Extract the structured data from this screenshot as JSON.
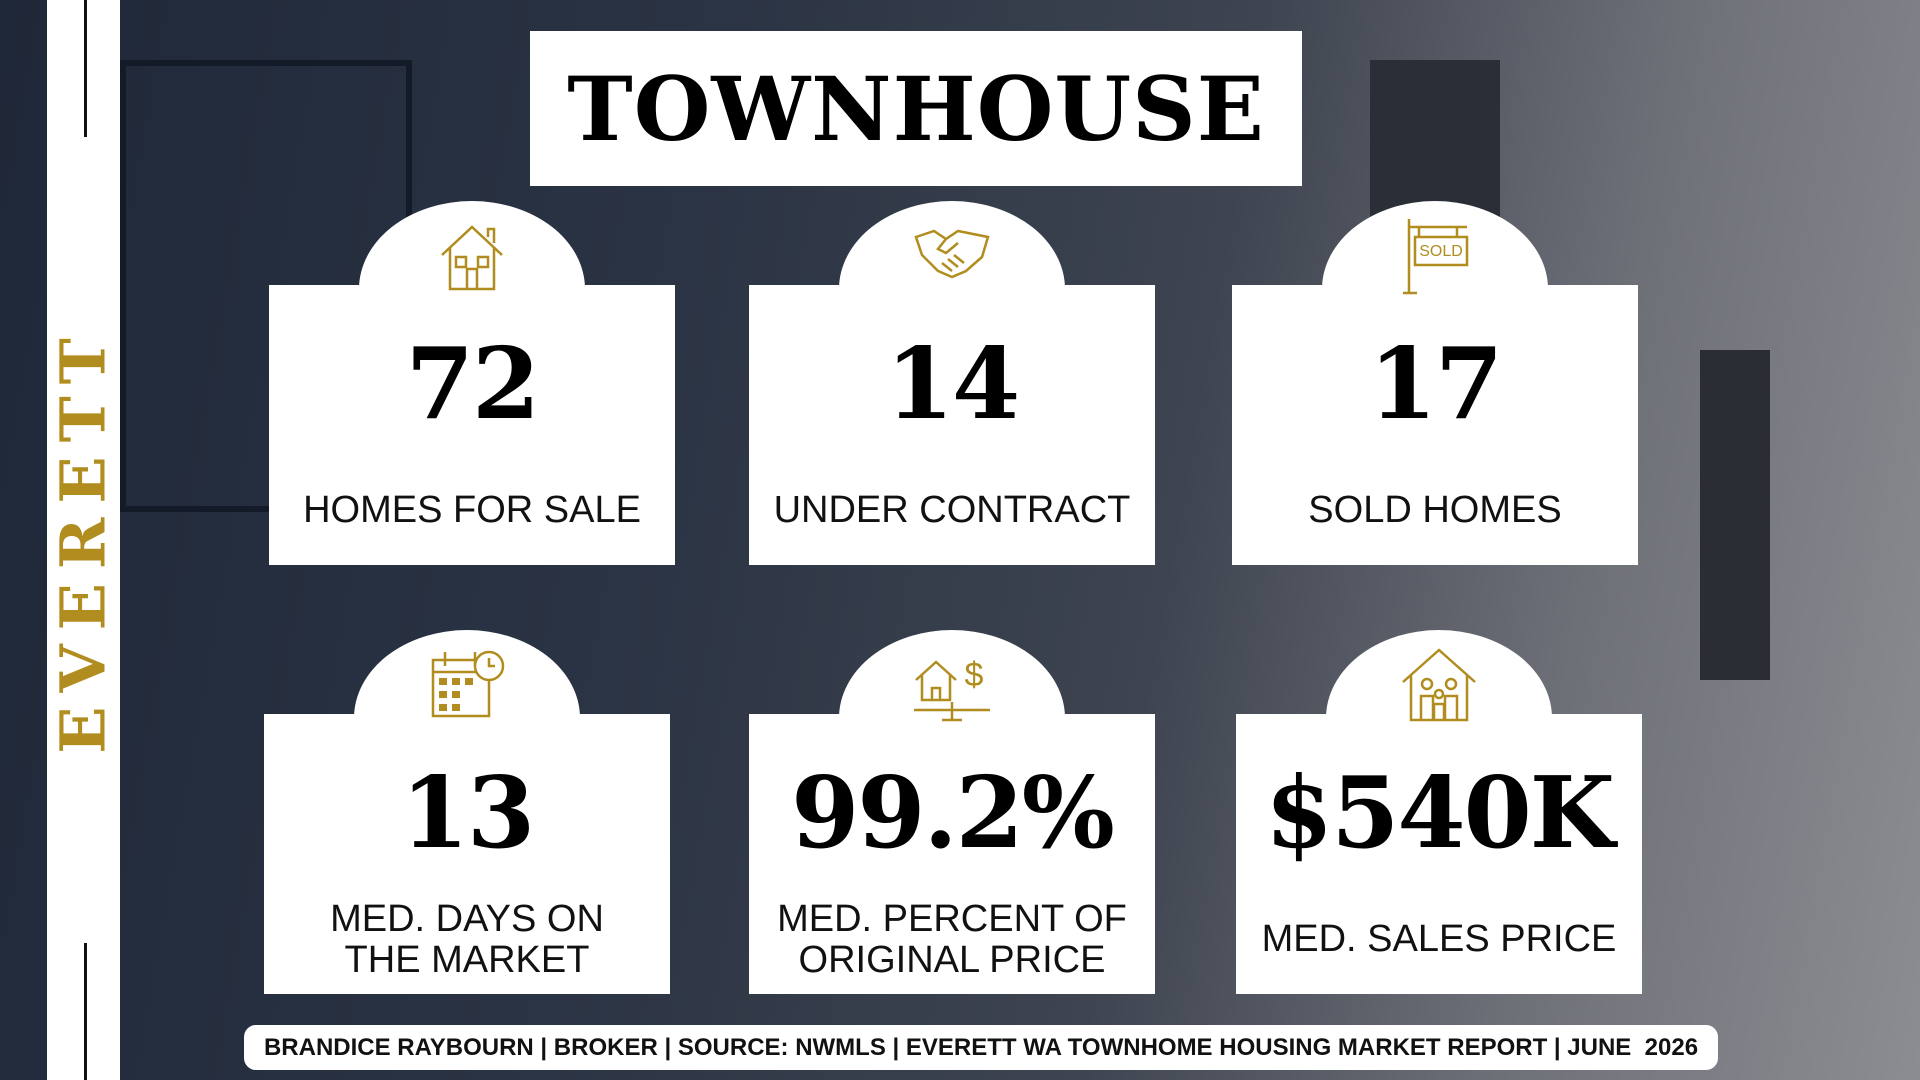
{
  "side_label": "EVERETT",
  "title": "TOWNHOUSE",
  "cards": [
    {
      "value": "72",
      "label_lines": [
        "HOMES FOR SALE"
      ]
    },
    {
      "value": "14",
      "label_lines": [
        "UNDER CONTRACT"
      ]
    },
    {
      "value": "17",
      "label_lines": [
        "SOLD HOMES"
      ]
    },
    {
      "value": "13",
      "label_lines": [
        "MED. DAYS ON",
        "THE MARKET"
      ]
    },
    {
      "value": "99.2%",
      "label_lines": [
        "MED. PERCENT OF",
        "ORIGINAL PRICE"
      ]
    },
    {
      "value": "$540K",
      "label_lines": [
        "MED. SALES PRICE"
      ]
    }
  ],
  "sold_sign": "SOLD",
  "footer": "BRANDICE RAYBOURN | BROKER | SOURCE: NWMLS | EVERETT WA TOWNHOME HOUSING MARKET REPORT | JUNE  2026"
}
